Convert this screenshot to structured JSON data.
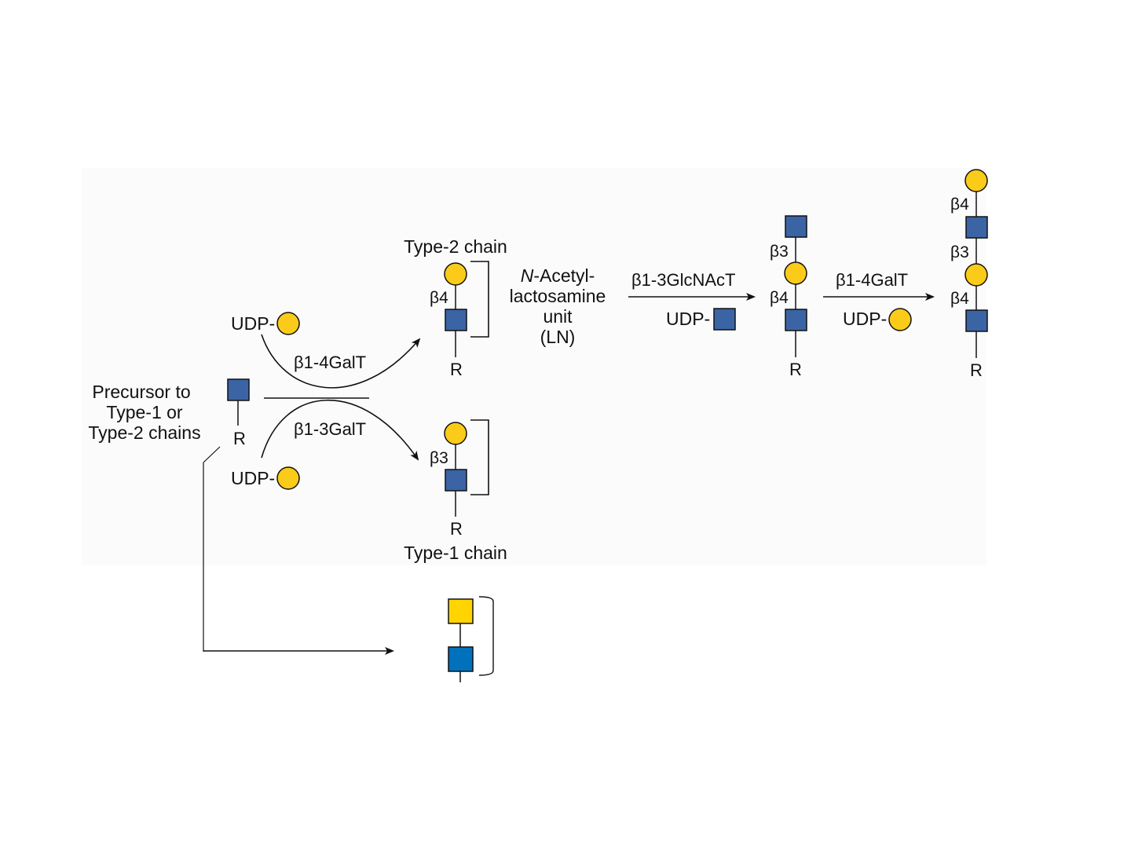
{
  "colors": {
    "gal": "#FBCB1A",
    "glcnac": "#3A64A4",
    "galnac_square": "#FFD400",
    "glcnac_bright": "#0072BC",
    "line": "#111111",
    "panel": "#FBFBFB"
  },
  "icons": {
    "circle": "galactose-circle-icon",
    "square": "glcnac-square-icon"
  },
  "precursor": {
    "label_lines": [
      "Precursor to",
      "Type-1 or",
      "Type-2 chains"
    ],
    "root": "R"
  },
  "donors": {
    "top": "UDP-",
    "bottom": "UDP-",
    "glcnac": "UDP-",
    "gal_last": "UDP-"
  },
  "enzymes": {
    "b14galt": "β1-4GalT",
    "b13galt": "β1-3GalT",
    "b13glcnact": "β1-3GlcNAcT",
    "b14galt_2": "β1-4GalT"
  },
  "type2": {
    "title": "Type-2 chain",
    "linkage": "β4",
    "root": "R"
  },
  "type1": {
    "title": "Type-1 chain",
    "linkage": "β3",
    "root": "R"
  },
  "ln_unit": {
    "italic_prefix": "N",
    "line1_rest": "-Acetyl-",
    "line2": "lactosamine",
    "line3": "unit",
    "line4": "(LN)"
  },
  "chain3": {
    "linkage_top": "β3",
    "linkage_bottom": "β4",
    "root": "R"
  },
  "chain4": {
    "linkage_1": "β4",
    "linkage_2": "β3",
    "linkage_3": "β4",
    "root": "R"
  }
}
